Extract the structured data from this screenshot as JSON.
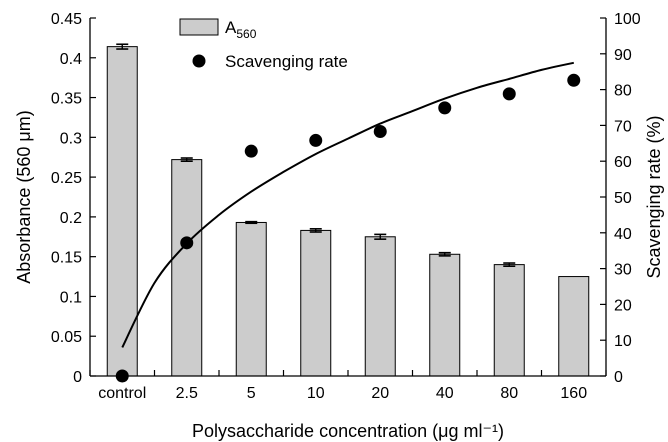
{
  "chart_data": {
    "type": "bar",
    "categories": [
      "control",
      "2.5",
      "5",
      "10",
      "20",
      "40",
      "80",
      "160"
    ],
    "xlabel": "Polysaccharide concentration (μg ml⁻¹)",
    "ylabel_left": "Absorbance (560 μm)",
    "ylabel_right": "Scavenging rate (%)",
    "ylim_left": [
      0,
      0.45
    ],
    "ylim_right": [
      0,
      100
    ],
    "yticks_left": [
      "0",
      "0.05",
      "0.1",
      "0.15",
      "0.2",
      "0.25",
      "0.3",
      "0.35",
      "0.4",
      "0.45"
    ],
    "yticks_right": [
      "0",
      "10",
      "20",
      "30",
      "40",
      "50",
      "60",
      "70",
      "80",
      "90",
      "100"
    ],
    "grid": false,
    "legend_position": "top-center",
    "series": [
      {
        "name": "A560",
        "legend_main": "A",
        "legend_sub": "560",
        "type": "bar",
        "axis": "left",
        "color": "#cccccc",
        "values": [
          0.414,
          0.272,
          0.193,
          0.183,
          0.175,
          0.153,
          0.14,
          0.125
        ],
        "errors": [
          0.003,
          0.002,
          0.001,
          0.002,
          0.003,
          0.002,
          0.002,
          0.0
        ]
      },
      {
        "name": "Scavenging rate",
        "type": "scatter",
        "axis": "right",
        "color": "#000000",
        "values": [
          0,
          37.2,
          62.8,
          65.8,
          68.3,
          74.9,
          78.8,
          82.6
        ]
      }
    ],
    "trend_line": {
      "axis": "right",
      "color": "#000000",
      "x": [
        0.0,
        0.5,
        1.0,
        1.5,
        2.0,
        2.5,
        3.0,
        3.5,
        4.0,
        4.5,
        5.0,
        5.5,
        6.0,
        6.5,
        7.0
      ],
      "y": [
        8.0,
        26.0,
        37.0,
        45.0,
        51.5,
        57.0,
        62.0,
        66.3,
        70.5,
        74.0,
        77.5,
        80.5,
        83.0,
        85.5,
        87.5
      ]
    }
  }
}
